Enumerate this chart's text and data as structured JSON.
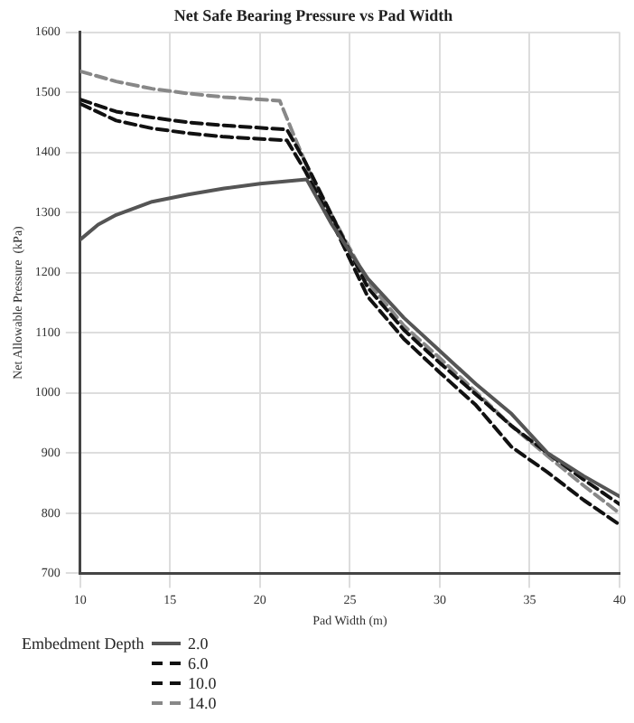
{
  "chart_data": {
    "type": "line",
    "title": "Net Safe Bearing Pressure vs Pad Width",
    "xlabel": "Pad Width (m)",
    "ylabel": "Net Allowable Pressure  (kPa)",
    "legend_title": "Embedment Depth",
    "xlim": [
      10,
      40
    ],
    "xticks": [
      10,
      15,
      20,
      25,
      30,
      35,
      40
    ],
    "ylim": [
      700,
      1600
    ],
    "yticks": [
      700,
      800,
      900,
      1000,
      1100,
      1200,
      1300,
      1400,
      1500,
      1600
    ],
    "grid": true,
    "legend": "bottom left",
    "marker": "none",
    "series": [
      {
        "name": "2.0",
        "color": "#555555",
        "line_style": "solid",
        "x": [
          10,
          11,
          12,
          14,
          16,
          18,
          20,
          22.6,
          24,
          26,
          28,
          30,
          32,
          34,
          36,
          38,
          40
        ],
        "values": [
          1255,
          1280,
          1296,
          1318,
          1330,
          1340,
          1348,
          1355,
          1280,
          1190,
          1125,
          1070,
          1015,
          965,
          900,
          862,
          828
        ]
      },
      {
        "name": "6.0",
        "color": "#111111",
        "line_style": "dashed",
        "x": [
          10,
          12,
          14,
          16,
          18,
          21.5,
          22.5,
          24,
          26,
          28,
          30,
          32,
          34,
          36,
          38,
          40
        ],
        "values": [
          1488,
          1468,
          1458,
          1450,
          1445,
          1438,
          1385,
          1295,
          1175,
          1105,
          1050,
          998,
          945,
          900,
          856,
          815
        ]
      },
      {
        "name": "10.0",
        "color": "#111111",
        "line_style": "dashed",
        "x": [
          10,
          12,
          14,
          16,
          18,
          21.5,
          22.5,
          24,
          26,
          28,
          30,
          32,
          34,
          36,
          38,
          40
        ],
        "values": [
          1481,
          1453,
          1440,
          1432,
          1426,
          1420,
          1370,
          1285,
          1160,
          1090,
          1034,
          980,
          910,
          868,
          822,
          781
        ]
      },
      {
        "name": "14.0",
        "color": "#888888",
        "line_style": "dashed",
        "x": [
          10,
          12,
          14,
          16,
          18,
          21.1,
          22,
          23,
          24,
          26,
          28,
          30,
          32,
          34,
          36,
          38,
          40
        ],
        "values": [
          1535,
          1518,
          1506,
          1498,
          1492,
          1486,
          1420,
          1350,
          1295,
          1185,
          1112,
          1058,
          1002,
          945,
          895,
          846,
          800
        ]
      }
    ]
  }
}
